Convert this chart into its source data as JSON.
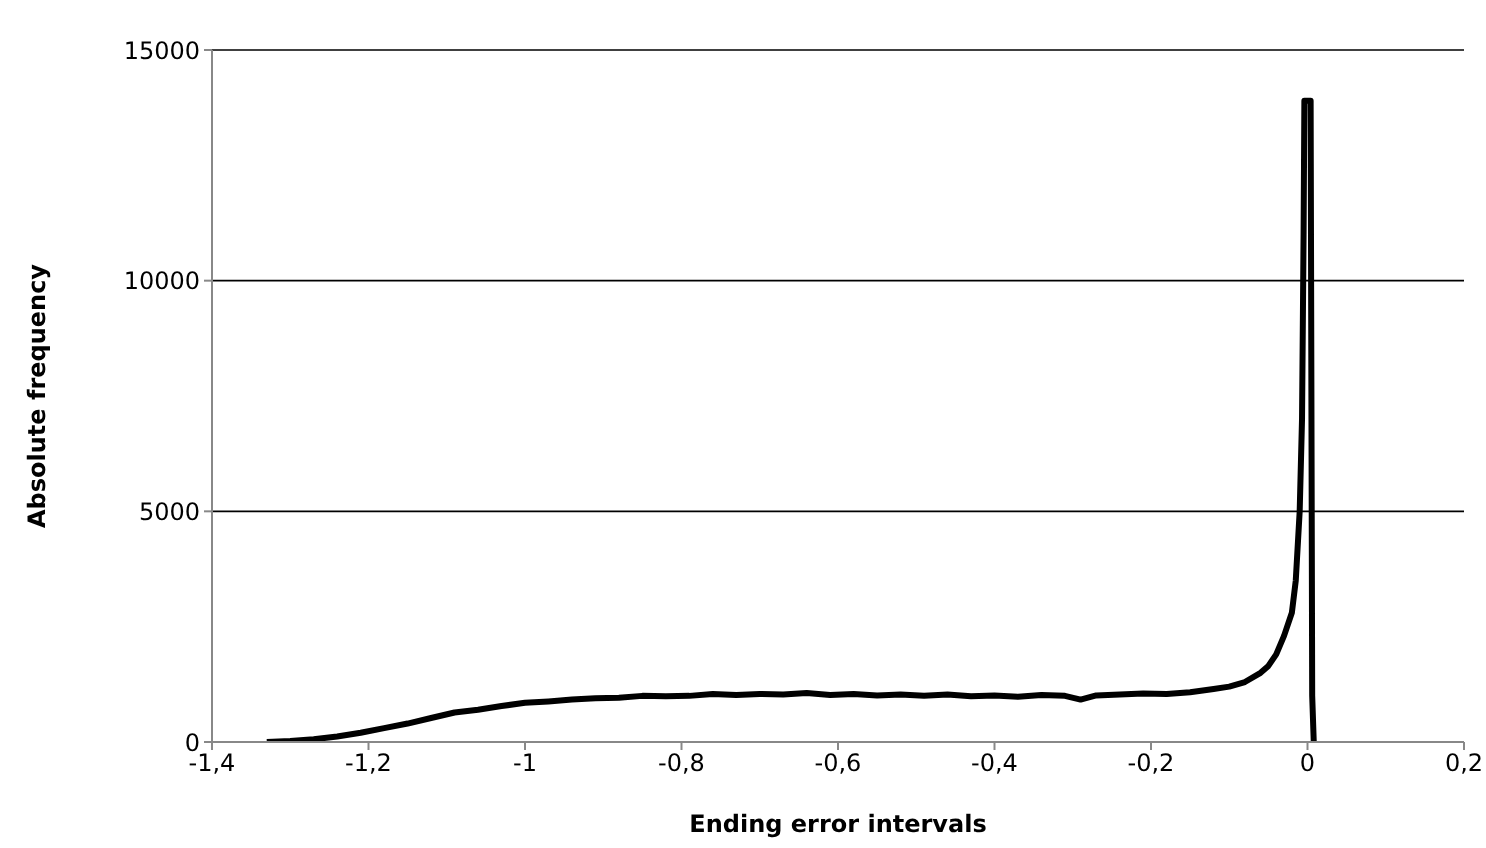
{
  "chart_data": {
    "type": "line",
    "xlabel": "Ending error intervals",
    "ylabel": "Absolute frequency",
    "x": [
      -1.33,
      -1.3,
      -1.27,
      -1.24,
      -1.21,
      -1.18,
      -1.15,
      -1.12,
      -1.09,
      -1.06,
      -1.03,
      -1.0,
      -0.97,
      -0.94,
      -0.91,
      -0.88,
      -0.85,
      -0.82,
      -0.79,
      -0.76,
      -0.73,
      -0.7,
      -0.67,
      -0.64,
      -0.61,
      -0.58,
      -0.55,
      -0.52,
      -0.49,
      -0.46,
      -0.43,
      -0.4,
      -0.37,
      -0.34,
      -0.31,
      -0.29,
      -0.27,
      -0.24,
      -0.21,
      -0.18,
      -0.15,
      -0.12,
      -0.1,
      -0.08,
      -0.06,
      -0.05,
      -0.04,
      -0.03,
      -0.02,
      -0.015,
      -0.01,
      -0.007,
      -0.005,
      -0.004,
      0.004,
      0.006,
      0.008
    ],
    "series": [
      {
        "color": "#000000",
        "values": [
          0,
          20,
          60,
          120,
          200,
          300,
          400,
          520,
          640,
          700,
          780,
          850,
          880,
          920,
          950,
          960,
          1000,
          990,
          1000,
          1040,
          1020,
          1040,
          1030,
          1060,
          1020,
          1040,
          1010,
          1030,
          1000,
          1030,
          990,
          1010,
          980,
          1020,
          1000,
          920,
          1010,
          1030,
          1050,
          1040,
          1080,
          1150,
          1200,
          1300,
          1500,
          1650,
          1900,
          2300,
          2800,
          3500,
          5000,
          7000,
          11000,
          13900,
          13900,
          1000,
          0
        ]
      }
    ],
    "xlim": [
      -1.4,
      0.2
    ],
    "xticks": [
      {
        "value": -1.4,
        "label": "-1,4"
      },
      {
        "value": -1.2,
        "label": "-1,2"
      },
      {
        "value": -1,
        "label": "-1"
      },
      {
        "value": -0.8,
        "label": "-0,8"
      },
      {
        "value": -0.6,
        "label": "-0,6"
      },
      {
        "value": -0.4,
        "label": "-0,4"
      },
      {
        "value": -0.2,
        "label": "-0,2"
      },
      {
        "value": 0,
        "label": "0"
      },
      {
        "value": 0.2,
        "label": "0,2"
      }
    ],
    "ylim": [
      0,
      15000
    ],
    "yticks": [
      0,
      5000,
      10000,
      15000
    ],
    "grid": "y",
    "marker": "none",
    "line_style": "solid",
    "legend": false
  }
}
